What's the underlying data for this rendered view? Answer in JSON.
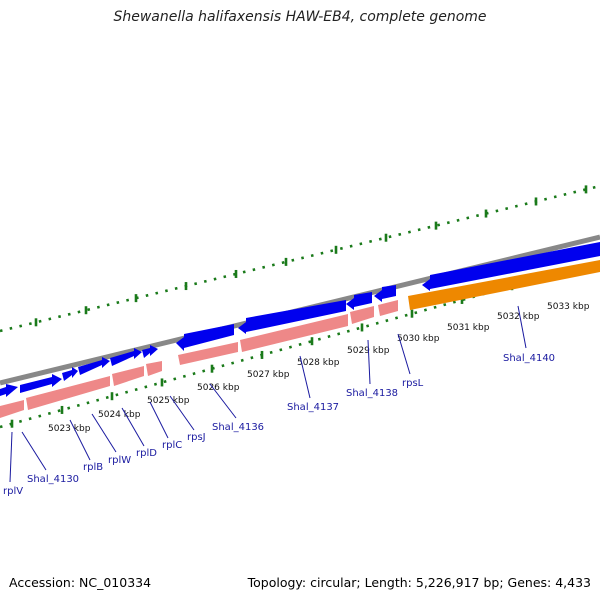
{
  "header": {
    "title": "Shewanella halifaxensis HAW-EB4, complete genome"
  },
  "footer": {
    "accession": "Accession: NC_010334",
    "topology": "Topology: circular; Length: 5,226,917 bp; Genes: 4,433"
  },
  "colors": {
    "backbone": "#888888",
    "cds_forward": "#0000ee",
    "cds_reverse": "#ee8888",
    "rna_gene": "#ee8800",
    "ticks": "#1a7a1a",
    "label": "#1a1aa0"
  },
  "map": {
    "kbp_marks": [
      {
        "kbp": 5023,
        "label": "5023 kbp"
      },
      {
        "kbp": 5024,
        "label": "5024 kbp"
      },
      {
        "kbp": 5025,
        "label": "5025 kbp"
      },
      {
        "kbp": 5026,
        "label": "5026 kbp"
      },
      {
        "kbp": 5027,
        "label": "5027 kbp"
      },
      {
        "kbp": 5028,
        "label": "5028 kbp"
      },
      {
        "kbp": 5029,
        "label": "5029 kbp"
      },
      {
        "kbp": 5030,
        "label": "5030 kbp"
      },
      {
        "kbp": 5031,
        "label": "5031 kbp"
      },
      {
        "kbp": 5032,
        "label": "5032 kbp"
      },
      {
        "kbp": 5033,
        "label": "5033 kbp"
      }
    ],
    "gene_labels": [
      {
        "name": "rplV"
      },
      {
        "name": "Shal_4130"
      },
      {
        "name": "rplB"
      },
      {
        "name": "rplW"
      },
      {
        "name": "rplD"
      },
      {
        "name": "rplC"
      },
      {
        "name": "rpsJ"
      },
      {
        "name": "Shal_4136"
      },
      {
        "name": "Shal_4137"
      },
      {
        "name": "Shal_4138"
      },
      {
        "name": "rpsL"
      },
      {
        "name": "Shal_4140"
      }
    ]
  }
}
